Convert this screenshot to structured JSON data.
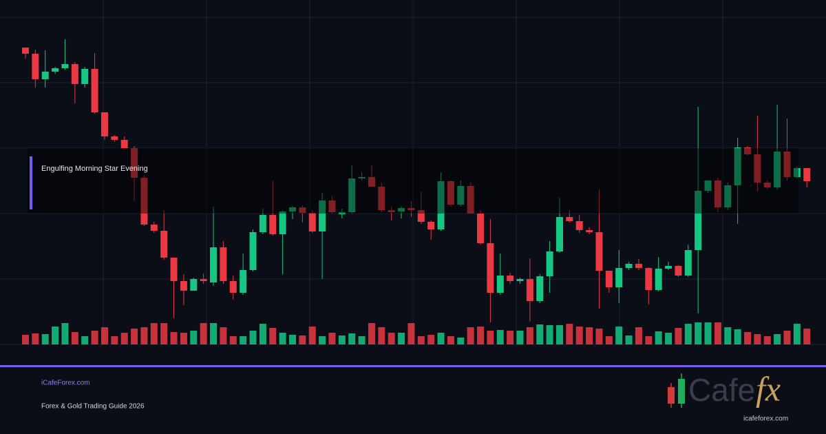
{
  "chart_data": {
    "type": "candlestick",
    "annotation": "Engulfing Morning Star Evening",
    "up_color": "#16c784",
    "down_color": "#ea3943",
    "ylim": [
      0,
      475
    ],
    "yticks": [
      0,
      95,
      190,
      285,
      380,
      475
    ],
    "grid": true,
    "volume_lim": [
      0,
      100
    ],
    "open": [
      431,
      422,
      385,
      396,
      401,
      407,
      378,
      400,
      337,
      302,
      297,
      285,
      242,
      174,
      165,
      126,
      92,
      78,
      95,
      90,
      141,
      92,
      75,
      108,
      163,
      188,
      160,
      193,
      199,
      191,
      164,
      209,
      189,
      192,
      241,
      243,
      229,
      195,
      193,
      198,
      195,
      178,
      167,
      237,
      203,
      230,
      190,
      147,
      75,
      100,
      92,
      95,
      63,
      99,
      135,
      185,
      179,
      166,
      163,
      107,
      83,
      111,
      117,
      111,
      79,
      110,
      114,
      100,
      137,
      223,
      238,
      199,
      231,
      286,
      276,
      235,
      228,
      280,
      243,
      256
    ],
    "high": [
      431,
      428,
      427,
      403,
      443,
      410,
      403,
      423,
      337,
      304,
      302,
      288,
      245,
      178,
      195,
      126,
      102,
      97,
      103,
      200,
      150,
      100,
      132,
      167,
      197,
      238,
      195,
      201,
      202,
      195,
      220,
      215,
      197,
      260,
      250,
      260,
      235,
      200,
      200,
      208,
      222,
      180,
      250,
      238,
      238,
      235,
      195,
      182,
      132,
      104,
      97,
      125,
      102,
      150,
      213,
      195,
      188,
      170,
      225,
      107,
      137,
      120,
      124,
      112,
      127,
      120,
      115,
      145,
      345,
      238,
      242,
      235,
      300,
      288,
      332,
      238,
      348,
      328,
      258,
      256
    ],
    "low": [
      415,
      373,
      373,
      393,
      399,
      350,
      373,
      335,
      297,
      294,
      283,
      208,
      172,
      162,
      123,
      38,
      57,
      78,
      88,
      85,
      88,
      65,
      72,
      106,
      160,
      158,
      102,
      182,
      177,
      162,
      95,
      190,
      183,
      190,
      238,
      229,
      192,
      180,
      183,
      185,
      175,
      152,
      165,
      200,
      200,
      190,
      145,
      32,
      72,
      88,
      88,
      33,
      60,
      75,
      133,
      177,
      162,
      160,
      52,
      75,
      60,
      108,
      108,
      58,
      77,
      108,
      98,
      98,
      45,
      220,
      192,
      195,
      175,
      274,
      222,
      226,
      225,
      238,
      242,
      228
    ],
    "close": [
      422,
      385,
      396,
      401,
      407,
      378,
      400,
      337,
      302,
      297,
      285,
      242,
      174,
      165,
      126,
      92,
      78,
      95,
      92,
      141,
      92,
      75,
      108,
      163,
      188,
      160,
      193,
      199,
      191,
      164,
      209,
      192,
      192,
      241,
      243,
      229,
      195,
      192,
      198,
      195,
      178,
      167,
      237,
      203,
      230,
      190,
      147,
      75,
      100,
      92,
      95,
      63,
      99,
      135,
      185,
      179,
      166,
      163,
      107,
      83,
      111,
      117,
      111,
      79,
      110,
      114,
      100,
      137,
      223,
      238,
      199,
      231,
      286,
      276,
      235,
      228,
      280,
      243,
      256,
      237
    ],
    "volume": [
      14,
      16,
      15,
      26,
      31,
      18,
      12,
      20,
      25,
      12,
      17,
      23,
      25,
      31,
      31,
      18,
      17,
      20,
      31,
      31,
      25,
      12,
      12,
      20,
      30,
      24,
      17,
      14,
      13,
      26,
      12,
      17,
      13,
      16,
      12,
      31,
      25,
      17,
      17,
      31,
      12,
      14,
      17,
      12,
      10,
      25,
      26,
      20,
      21,
      20,
      20,
      25,
      29,
      28,
      28,
      30,
      26,
      25,
      23,
      12,
      26,
      13,
      25,
      12,
      19,
      17,
      24,
      30,
      32,
      32,
      32,
      25,
      22,
      18,
      15,
      12,
      15,
      20,
      30,
      23
    ]
  },
  "footer": {
    "site": "iCafeForex.com",
    "tagline": "Forex & Gold Trading Guide 2026"
  },
  "logo": {
    "word": "Cafe",
    "mark": "fx",
    "url": "icafeforex.com"
  }
}
